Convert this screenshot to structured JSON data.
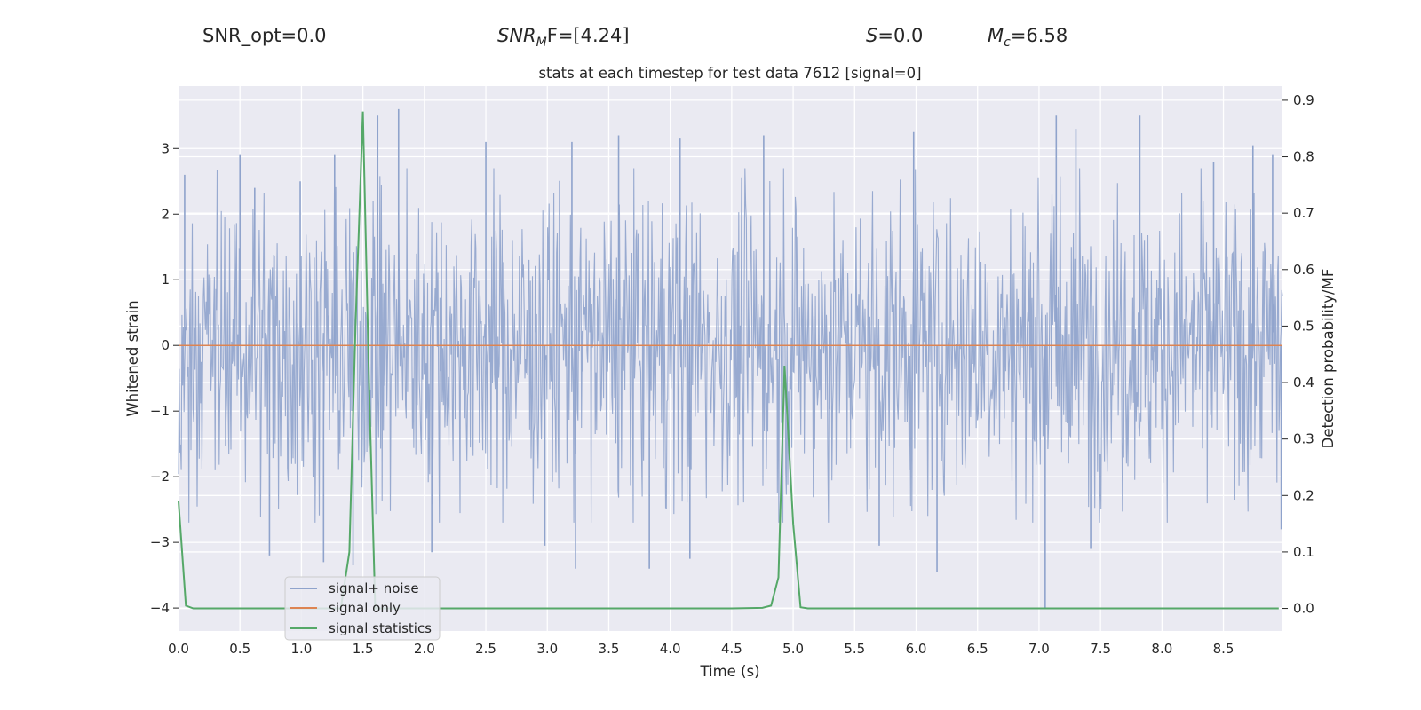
{
  "header": {
    "snr_opt": "SNR_opt=0.0",
    "snr_mf_base": "SNR",
    "snr_mf_sub": "M",
    "snr_mf_rest": "F=[4.24]",
    "s_var": "S",
    "s_rest": "=0.0",
    "mc_var": "M",
    "mc_sub": "c",
    "mc_rest": "=6.58"
  },
  "chart_data": {
    "type": "line",
    "title": "stats at each timestep for test data 7612 [signal=0]",
    "xlabel": "Time (s)",
    "ylabel": "Whitened strain",
    "y2label": "Detection probability/MF",
    "xlim": [
      0.0,
      8.98
    ],
    "ylim": [
      -4.35,
      3.95
    ],
    "y2lim": [
      -0.04,
      0.925
    ],
    "xticks": [
      "0.0",
      "0.5",
      "1.0",
      "1.5",
      "2.0",
      "2.5",
      "3.0",
      "3.5",
      "4.0",
      "4.5",
      "5.0",
      "5.5",
      "6.0",
      "6.5",
      "7.0",
      "7.5",
      "8.0",
      "8.5"
    ],
    "yticks": [
      "3",
      "2",
      "1",
      "0",
      "−1",
      "−2",
      "−3",
      "−4"
    ],
    "y2ticks": [
      "0.9",
      "0.8",
      "0.7",
      "0.6",
      "0.5",
      "0.4",
      "0.3",
      "0.2",
      "0.1",
      "0.0"
    ],
    "grid": true,
    "legend_position": "lower-left",
    "colors": {
      "background": "#eaeaf2",
      "grid": "#ffffff",
      "noise": "#8fa3cc",
      "signal": "#dd8452",
      "stat": "#55a868"
    },
    "series": [
      {
        "name": "signal+ noise",
        "axis": "left",
        "description_values": "dense noise, amplitude mostly within [-2.5, 2.5], peaks near 3.6 and -4.0",
        "noise_amplitude": 1.15
      },
      {
        "name": "signal only",
        "axis": "left",
        "x": [
          0.0,
          8.98
        ],
        "y": [
          0.0,
          0.0
        ]
      },
      {
        "name": "signal statistics",
        "axis": "right",
        "x": [
          0.0,
          0.06,
          0.12,
          1.32,
          1.39,
          1.44,
          1.5,
          1.55,
          1.6,
          2.0,
          4.5,
          4.75,
          4.82,
          4.88,
          4.93,
          5.0,
          5.06,
          5.12,
          8.95
        ],
        "y": [
          0.19,
          0.005,
          0.0,
          0.0,
          0.1,
          0.5,
          0.88,
          0.4,
          0.0,
          0.0,
          0.0,
          0.001,
          0.005,
          0.055,
          0.43,
          0.15,
          0.002,
          0.0,
          0.0
        ]
      }
    ],
    "noise_spikes": [
      {
        "x": 0.05,
        "y": 2.6
      },
      {
        "x": 0.5,
        "y": 2.9
      },
      {
        "x": 0.62,
        "y": 2.4
      },
      {
        "x": 0.74,
        "y": -3.2
      },
      {
        "x": 0.99,
        "y": 2.5
      },
      {
        "x": 1.18,
        "y": -3.3
      },
      {
        "x": 1.27,
        "y": 2.9
      },
      {
        "x": 1.42,
        "y": -3.35
      },
      {
        "x": 1.62,
        "y": 3.5
      },
      {
        "x": 1.79,
        "y": 3.6
      },
      {
        "x": 2.06,
        "y": -3.15
      },
      {
        "x": 2.5,
        "y": 3.1
      },
      {
        "x": 2.98,
        "y": -3.05
      },
      {
        "x": 3.2,
        "y": 3.1
      },
      {
        "x": 3.23,
        "y": -3.4
      },
      {
        "x": 3.58,
        "y": 3.2
      },
      {
        "x": 3.83,
        "y": -3.4
      },
      {
        "x": 4.08,
        "y": 3.15
      },
      {
        "x": 4.16,
        "y": -3.25
      },
      {
        "x": 4.76,
        "y": 3.2
      },
      {
        "x": 5.7,
        "y": -3.05
      },
      {
        "x": 5.98,
        "y": 3.25
      },
      {
        "x": 6.17,
        "y": -3.45
      },
      {
        "x": 7.05,
        "y": -4.0
      },
      {
        "x": 7.14,
        "y": 3.5
      },
      {
        "x": 7.3,
        "y": 3.3
      },
      {
        "x": 7.42,
        "y": -3.1
      },
      {
        "x": 7.82,
        "y": 3.5
      },
      {
        "x": 8.42,
        "y": 2.8
      },
      {
        "x": 8.74,
        "y": 3.05
      },
      {
        "x": 8.9,
        "y": 2.9
      },
      {
        "x": 8.97,
        "y": -2.8
      }
    ]
  }
}
